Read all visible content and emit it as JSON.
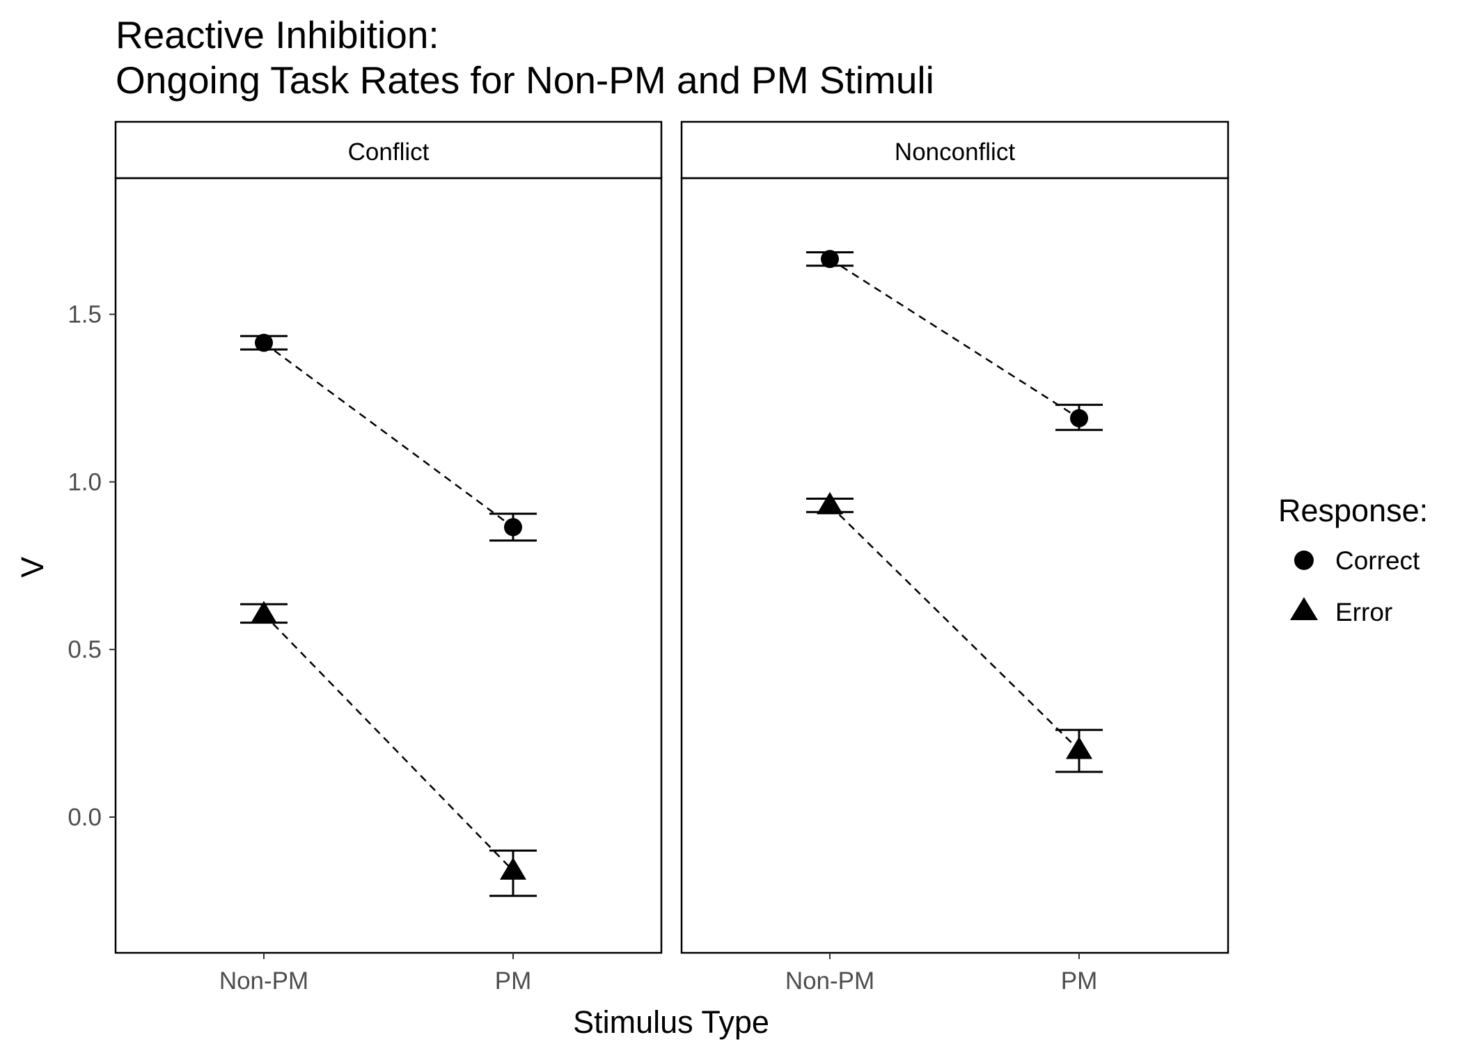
{
  "chart_data": {
    "type": "scatter",
    "title_lines": [
      "Reactive Inhibition:",
      "Ongoing Task Rates for Non-PM and PM Stimuli"
    ],
    "xlabel": "Stimulus Type",
    "ylabel": "V",
    "categories": [
      "Non-PM",
      "PM"
    ],
    "ylim": [
      -0.4,
      1.95
    ],
    "yticks": [
      0.0,
      0.5,
      1.0,
      1.5
    ],
    "ytick_labels": [
      "0.0",
      "0.5",
      "1.0",
      "1.5"
    ],
    "grid": false,
    "line_style": "dashed",
    "legend": {
      "title": "Response:",
      "position": "right",
      "entries": [
        {
          "label": "Correct",
          "shape": "circle"
        },
        {
          "label": "Error",
          "shape": "triangle"
        }
      ]
    },
    "panels": [
      {
        "label": "Conflict",
        "series": [
          {
            "response": "Correct",
            "shape": "circle",
            "values": [
              1.415,
              0.865
            ],
            "lower": [
              1.395,
              0.825
            ],
            "upper": [
              1.435,
              0.905
            ]
          },
          {
            "response": "Error",
            "shape": "triangle",
            "values": [
              0.605,
              -0.16
            ],
            "lower": [
              0.58,
              -0.235
            ],
            "upper": [
              0.635,
              -0.1
            ]
          }
        ]
      },
      {
        "label": "Nonconflict",
        "series": [
          {
            "response": "Correct",
            "shape": "circle",
            "values": [
              1.665,
              1.19
            ],
            "lower": [
              1.645,
              1.155
            ],
            "upper": [
              1.685,
              1.23
            ]
          },
          {
            "response": "Error",
            "shape": "triangle",
            "values": [
              0.93,
              0.2
            ],
            "lower": [
              0.91,
              0.135
            ],
            "upper": [
              0.95,
              0.26
            ]
          }
        ]
      }
    ]
  }
}
